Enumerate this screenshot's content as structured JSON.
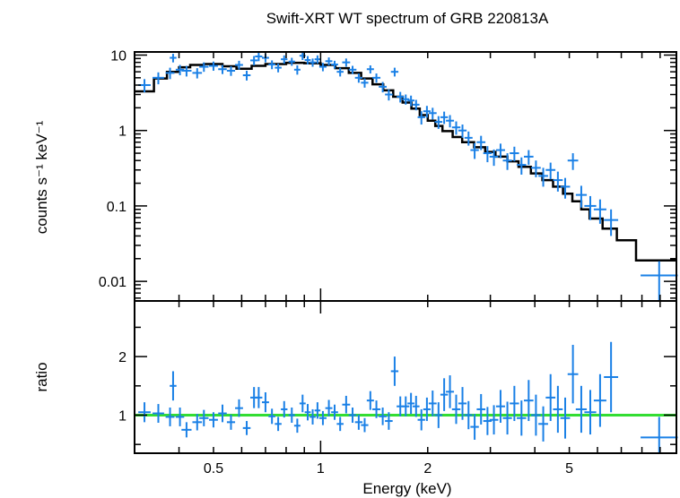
{
  "chart_data": {
    "title": "Swift-XRT WT spectrum of GRB 220813A",
    "xlabel": "Energy (keV)",
    "x_scale": "log",
    "xlim": [
      0.3,
      10
    ],
    "x_ticks": [
      {
        "value": 0.5,
        "label": "0.5"
      },
      {
        "value": 1,
        "label": "1"
      },
      {
        "value": 2,
        "label": "2"
      },
      {
        "value": 5,
        "label": "5"
      }
    ],
    "colors": {
      "data": "#1a80e6",
      "model": "#000000",
      "unity": "#33dd33",
      "frame": "#000000"
    },
    "panels": [
      {
        "id": "spectrum",
        "type": "scatter",
        "ylabel": "counts s⁻¹ keV⁻¹",
        "y_scale": "log",
        "ylim": [
          0.0055,
          11
        ],
        "y_ticks": [
          {
            "value": 10,
            "label": "10"
          },
          {
            "value": 1,
            "label": "1"
          },
          {
            "value": 0.1,
            "label": "0.1"
          },
          {
            "value": 0.01,
            "label": "0.01"
          }
        ],
        "data": [
          [
            0.31,
            0.33,
            4.0,
            0.8
          ],
          [
            0.34,
            0.36,
            5.0,
            0.9
          ],
          [
            0.37,
            0.385,
            5.8,
            1.0
          ],
          [
            0.38,
            0.39,
            9.2,
            1.2
          ],
          [
            0.395,
            0.41,
            6.4,
            1.0
          ],
          [
            0.41,
            0.43,
            6.2,
            1.0
          ],
          [
            0.44,
            0.46,
            5.8,
            0.9
          ],
          [
            0.46,
            0.48,
            7.0,
            1.0
          ],
          [
            0.49,
            0.51,
            7.2,
            1.0
          ],
          [
            0.52,
            0.54,
            6.5,
            0.9
          ],
          [
            0.55,
            0.57,
            6.2,
            0.9
          ],
          [
            0.58,
            0.6,
            7.4,
            1.0
          ],
          [
            0.61,
            0.63,
            5.4,
            0.8
          ],
          [
            0.64,
            0.66,
            8.5,
            1.2
          ],
          [
            0.66,
            0.68,
            9.6,
            1.3
          ],
          [
            0.69,
            0.71,
            9.2,
            1.2
          ],
          [
            0.72,
            0.74,
            7.5,
            1.0
          ],
          [
            0.75,
            0.77,
            6.8,
            0.9
          ],
          [
            0.78,
            0.8,
            8.8,
            1.1
          ],
          [
            0.82,
            0.84,
            8.2,
            1.0
          ],
          [
            0.85,
            0.87,
            6.4,
            0.9
          ],
          [
            0.88,
            0.9,
            9.8,
            1.2
          ],
          [
            0.91,
            0.93,
            8.6,
            1.1
          ],
          [
            0.94,
            0.96,
            8.0,
            1.0
          ],
          [
            0.97,
            0.99,
            8.8,
            1.1
          ],
          [
            1.0,
            1.03,
            7.0,
            0.9
          ],
          [
            1.04,
            1.07,
            8.3,
            1.0
          ],
          [
            1.08,
            1.11,
            7.5,
            0.9
          ],
          [
            1.12,
            1.15,
            6.0,
            0.8
          ],
          [
            1.16,
            1.2,
            8.0,
            1.0
          ],
          [
            1.21,
            1.25,
            6.4,
            0.8
          ],
          [
            1.26,
            1.3,
            5.0,
            0.7
          ],
          [
            1.31,
            1.35,
            4.3,
            0.6
          ],
          [
            1.36,
            1.4,
            6.5,
            0.8
          ],
          [
            1.41,
            1.46,
            5.0,
            0.7
          ],
          [
            1.47,
            1.52,
            3.8,
            0.6
          ],
          [
            1.53,
            1.58,
            3.0,
            0.5
          ],
          [
            1.59,
            1.64,
            6.0,
            0.8
          ],
          [
            1.65,
            1.7,
            2.8,
            0.45
          ],
          [
            1.71,
            1.76,
            2.6,
            0.4
          ],
          [
            1.77,
            1.82,
            2.5,
            0.4
          ],
          [
            1.83,
            1.88,
            2.2,
            0.35
          ],
          [
            1.89,
            1.95,
            1.5,
            0.3
          ],
          [
            1.96,
            2.02,
            1.8,
            0.32
          ],
          [
            2.03,
            2.1,
            1.7,
            0.3
          ],
          [
            2.11,
            2.18,
            1.3,
            0.25
          ],
          [
            2.19,
            2.26,
            1.5,
            0.28
          ],
          [
            2.27,
            2.35,
            1.35,
            0.25
          ],
          [
            2.36,
            2.45,
            1.1,
            0.22
          ],
          [
            2.46,
            2.55,
            1.0,
            0.2
          ],
          [
            2.56,
            2.65,
            0.8,
            0.17
          ],
          [
            2.66,
            2.76,
            0.55,
            0.13
          ],
          [
            2.77,
            2.88,
            0.7,
            0.15
          ],
          [
            2.89,
            3.0,
            0.5,
            0.12
          ],
          [
            3.01,
            3.13,
            0.45,
            0.11
          ],
          [
            3.14,
            3.27,
            0.55,
            0.12
          ],
          [
            3.28,
            3.42,
            0.4,
            0.1
          ],
          [
            3.43,
            3.58,
            0.5,
            0.11
          ],
          [
            3.59,
            3.75,
            0.35,
            0.09
          ],
          [
            3.76,
            3.93,
            0.45,
            0.1
          ],
          [
            3.94,
            4.12,
            0.32,
            0.08
          ],
          [
            4.13,
            4.32,
            0.25,
            0.07
          ],
          [
            4.33,
            4.53,
            0.3,
            0.075
          ],
          [
            4.54,
            4.75,
            0.22,
            0.065
          ],
          [
            4.76,
            4.98,
            0.18,
            0.055
          ],
          [
            4.99,
            5.25,
            0.4,
            0.1
          ],
          [
            5.26,
            5.55,
            0.14,
            0.045
          ],
          [
            5.56,
            5.9,
            0.1,
            0.035
          ],
          [
            5.91,
            6.3,
            0.09,
            0.032
          ],
          [
            6.31,
            6.8,
            0.065,
            0.025
          ],
          [
            8.0,
            10.0,
            0.012,
            0.0065
          ]
        ],
        "model_steps": [
          [
            0.3,
            0.34,
            3.3
          ],
          [
            0.34,
            0.37,
            4.9
          ],
          [
            0.37,
            0.4,
            6.0
          ],
          [
            0.4,
            0.43,
            6.9
          ],
          [
            0.43,
            0.47,
            7.4
          ],
          [
            0.47,
            0.53,
            7.6
          ],
          [
            0.53,
            0.58,
            7.1
          ],
          [
            0.58,
            0.64,
            6.6
          ],
          [
            0.64,
            0.7,
            7.2
          ],
          [
            0.7,
            0.8,
            7.6
          ],
          [
            0.8,
            0.9,
            7.9
          ],
          [
            0.9,
            1.0,
            7.8
          ],
          [
            1.0,
            1.1,
            7.4
          ],
          [
            1.1,
            1.2,
            6.7
          ],
          [
            1.2,
            1.3,
            5.8
          ],
          [
            1.3,
            1.4,
            4.9
          ],
          [
            1.4,
            1.5,
            4.1
          ],
          [
            1.5,
            1.6,
            3.4
          ],
          [
            1.6,
            1.7,
            2.8
          ],
          [
            1.7,
            1.8,
            2.35
          ],
          [
            1.8,
            1.9,
            1.95
          ],
          [
            1.9,
            2.0,
            1.6
          ],
          [
            2.0,
            2.1,
            1.35
          ],
          [
            2.1,
            2.2,
            1.15
          ],
          [
            2.2,
            2.35,
            0.98
          ],
          [
            2.35,
            2.5,
            0.82
          ],
          [
            2.5,
            2.7,
            0.7
          ],
          [
            2.7,
            2.9,
            0.6
          ],
          [
            2.9,
            3.1,
            0.52
          ],
          [
            3.1,
            3.35,
            0.45
          ],
          [
            3.35,
            3.6,
            0.39
          ],
          [
            3.6,
            3.9,
            0.33
          ],
          [
            3.9,
            4.2,
            0.27
          ],
          [
            4.2,
            4.5,
            0.22
          ],
          [
            4.5,
            4.8,
            0.18
          ],
          [
            4.8,
            5.1,
            0.145
          ],
          [
            5.1,
            5.4,
            0.115
          ],
          [
            5.4,
            5.7,
            0.09
          ],
          [
            5.7,
            6.2,
            0.068
          ],
          [
            6.2,
            6.8,
            0.05
          ],
          [
            6.8,
            7.7,
            0.035
          ],
          [
            7.7,
            10.0,
            0.019
          ]
        ]
      },
      {
        "id": "ratio",
        "type": "scatter",
        "ylabel": "ratio",
        "y_scale": "linear",
        "ylim": [
          0.35,
          2.95
        ],
        "y_ticks": [
          {
            "value": 1,
            "label": "1"
          },
          {
            "value": 2,
            "label": "2"
          }
        ],
        "unity_line": 1,
        "data": [
          [
            0.31,
            0.33,
            1.05,
            0.17
          ],
          [
            0.34,
            0.36,
            1.03,
            0.16
          ],
          [
            0.37,
            0.385,
            0.97,
            0.16
          ],
          [
            0.38,
            0.39,
            1.5,
            0.25
          ],
          [
            0.395,
            0.41,
            0.97,
            0.16
          ],
          [
            0.41,
            0.43,
            0.75,
            0.13
          ],
          [
            0.44,
            0.46,
            0.88,
            0.14
          ],
          [
            0.46,
            0.48,
            0.95,
            0.14
          ],
          [
            0.49,
            0.51,
            0.92,
            0.13
          ],
          [
            0.52,
            0.54,
            1.03,
            0.15
          ],
          [
            0.55,
            0.57,
            0.88,
            0.13
          ],
          [
            0.58,
            0.6,
            1.12,
            0.15
          ],
          [
            0.61,
            0.63,
            0.78,
            0.12
          ],
          [
            0.64,
            0.66,
            1.3,
            0.18
          ],
          [
            0.66,
            0.68,
            1.3,
            0.18
          ],
          [
            0.69,
            0.71,
            1.22,
            0.17
          ],
          [
            0.72,
            0.74,
            0.98,
            0.13
          ],
          [
            0.75,
            0.77,
            0.85,
            0.12
          ],
          [
            0.78,
            0.8,
            1.1,
            0.14
          ],
          [
            0.82,
            0.84,
            1.0,
            0.13
          ],
          [
            0.85,
            0.87,
            0.82,
            0.12
          ],
          [
            0.88,
            0.9,
            1.2,
            0.15
          ],
          [
            0.91,
            0.93,
            1.05,
            0.14
          ],
          [
            0.94,
            0.96,
            0.97,
            0.13
          ],
          [
            0.97,
            0.99,
            1.08,
            0.14
          ],
          [
            1.0,
            1.03,
            0.95,
            0.12
          ],
          [
            1.04,
            1.07,
            1.12,
            0.14
          ],
          [
            1.08,
            1.11,
            1.05,
            0.13
          ],
          [
            1.12,
            1.15,
            0.85,
            0.12
          ],
          [
            1.16,
            1.2,
            1.18,
            0.15
          ],
          [
            1.21,
            1.25,
            1.0,
            0.13
          ],
          [
            1.26,
            1.3,
            0.88,
            0.13
          ],
          [
            1.31,
            1.35,
            0.83,
            0.12
          ],
          [
            1.36,
            1.4,
            1.25,
            0.16
          ],
          [
            1.41,
            1.46,
            1.1,
            0.15
          ],
          [
            1.47,
            1.52,
            0.98,
            0.15
          ],
          [
            1.53,
            1.58,
            0.9,
            0.15
          ],
          [
            1.59,
            1.64,
            1.75,
            0.25
          ],
          [
            1.65,
            1.7,
            1.15,
            0.17
          ],
          [
            1.71,
            1.76,
            1.15,
            0.17
          ],
          [
            1.77,
            1.82,
            1.2,
            0.18
          ],
          [
            1.83,
            1.88,
            1.15,
            0.18
          ],
          [
            1.89,
            1.95,
            0.92,
            0.18
          ],
          [
            1.96,
            2.02,
            1.1,
            0.2
          ],
          [
            2.03,
            2.1,
            1.2,
            0.22
          ],
          [
            2.11,
            2.18,
            1.0,
            0.22
          ],
          [
            2.19,
            2.26,
            1.35,
            0.28
          ],
          [
            2.27,
            2.35,
            1.4,
            0.28
          ],
          [
            2.36,
            2.45,
            1.1,
            0.25
          ],
          [
            2.46,
            2.55,
            1.2,
            0.28
          ],
          [
            2.56,
            2.65,
            1.0,
            0.24
          ],
          [
            2.66,
            2.76,
            0.8,
            0.22
          ],
          [
            2.77,
            2.88,
            1.1,
            0.26
          ],
          [
            2.89,
            3.0,
            0.9,
            0.24
          ],
          [
            3.01,
            3.13,
            0.92,
            0.25
          ],
          [
            3.14,
            3.27,
            1.15,
            0.28
          ],
          [
            3.28,
            3.42,
            0.95,
            0.28
          ],
          [
            3.43,
            3.58,
            1.2,
            0.3
          ],
          [
            3.59,
            3.75,
            0.95,
            0.3
          ],
          [
            3.76,
            3.93,
            1.25,
            0.35
          ],
          [
            3.94,
            4.12,
            1.0,
            0.35
          ],
          [
            4.13,
            4.32,
            0.85,
            0.3
          ],
          [
            4.33,
            4.53,
            1.3,
            0.4
          ],
          [
            4.54,
            4.75,
            1.1,
            0.4
          ],
          [
            4.76,
            4.98,
            0.95,
            0.35
          ],
          [
            4.99,
            5.25,
            1.7,
            0.5
          ],
          [
            5.26,
            5.55,
            1.1,
            0.4
          ],
          [
            5.56,
            5.9,
            1.05,
            0.38
          ],
          [
            5.91,
            6.3,
            1.25,
            0.45
          ],
          [
            6.31,
            6.8,
            1.65,
            0.6
          ],
          [
            8.0,
            10.0,
            0.62,
            0.35
          ]
        ]
      }
    ]
  }
}
